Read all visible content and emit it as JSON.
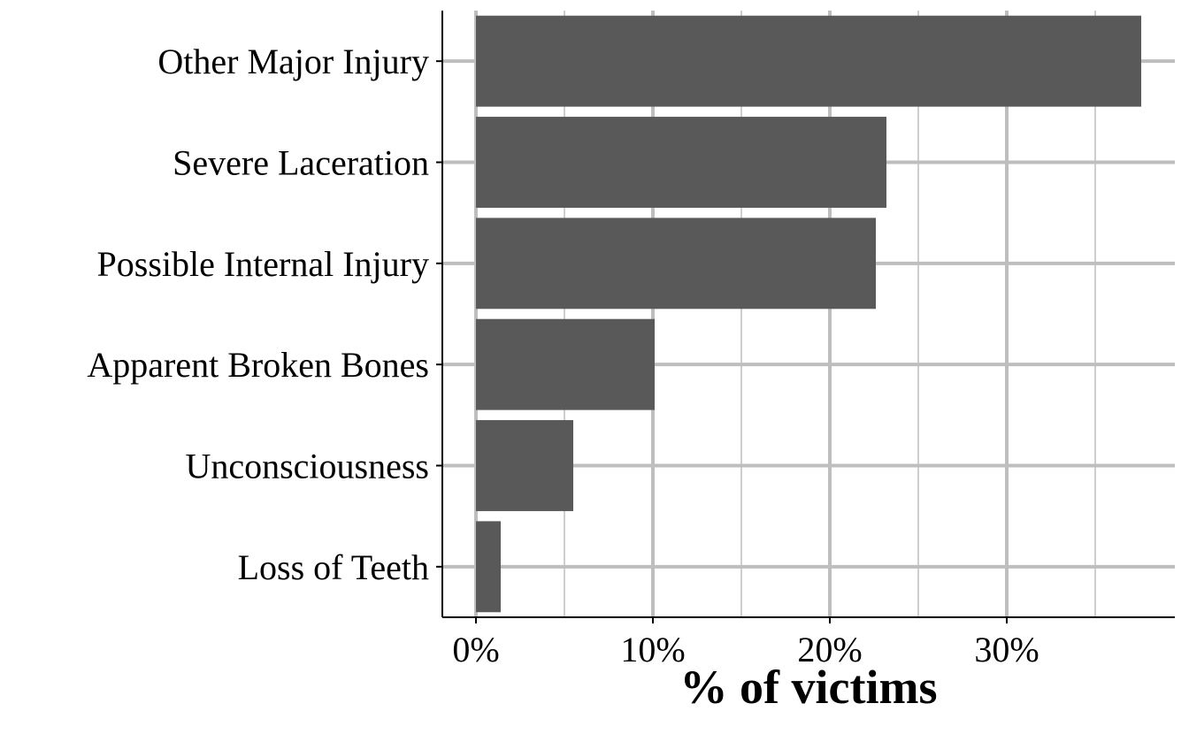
{
  "chart_data": {
    "type": "bar",
    "orientation": "horizontal",
    "categories": [
      "Other Major Injury",
      "Severe Laceration",
      "Possible Internal Injury",
      "Apparent Broken Bones",
      "Unconsciousness",
      "Loss of Teeth"
    ],
    "values": [
      37.6,
      23.2,
      22.6,
      10.1,
      5.5,
      1.4
    ],
    "xlabel": "% of victims",
    "ylabel": "",
    "xlim": [
      -1.9,
      39.5
    ],
    "xticks": [
      0,
      10,
      20,
      30
    ],
    "xtick_labels": [
      "0%",
      "10%",
      "20%",
      "30%"
    ],
    "grid": true,
    "bar_color": "#595959",
    "grid_color": "#bebebe"
  }
}
